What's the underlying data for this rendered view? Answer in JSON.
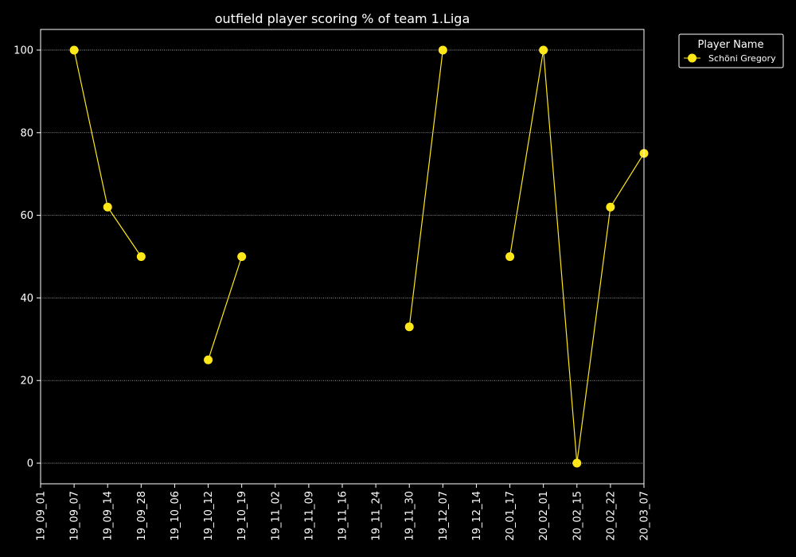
{
  "chart_data": {
    "type": "line",
    "title": "outfield player scoring % of team 1.Liga",
    "xlabel": "",
    "ylabel": "",
    "categories": [
      "19_09_01",
      "19_09_07",
      "19_09_14",
      "19_09_28",
      "19_10_06",
      "19_10_12",
      "19_10_19",
      "19_11_02",
      "19_11_09",
      "19_11_16",
      "19_11_24",
      "19_11_30",
      "19_12_07",
      "19_12_14",
      "20_01_17",
      "20_02_01",
      "20_02_15",
      "20_02_22",
      "20_03_07"
    ],
    "ylim": [
      -5,
      105
    ],
    "yticks": [
      0,
      20,
      40,
      60,
      80,
      100
    ],
    "grid": "horizontal dotted",
    "legend": {
      "title": "Player Name",
      "placement": "outside-top-right"
    },
    "series": [
      {
        "name": "Schöni Gregory",
        "color": "#ffe81a",
        "values": [
          null,
          100,
          62,
          50,
          null,
          25,
          50,
          null,
          null,
          null,
          null,
          33,
          100,
          null,
          50,
          100,
          0,
          62,
          75
        ]
      }
    ]
  }
}
